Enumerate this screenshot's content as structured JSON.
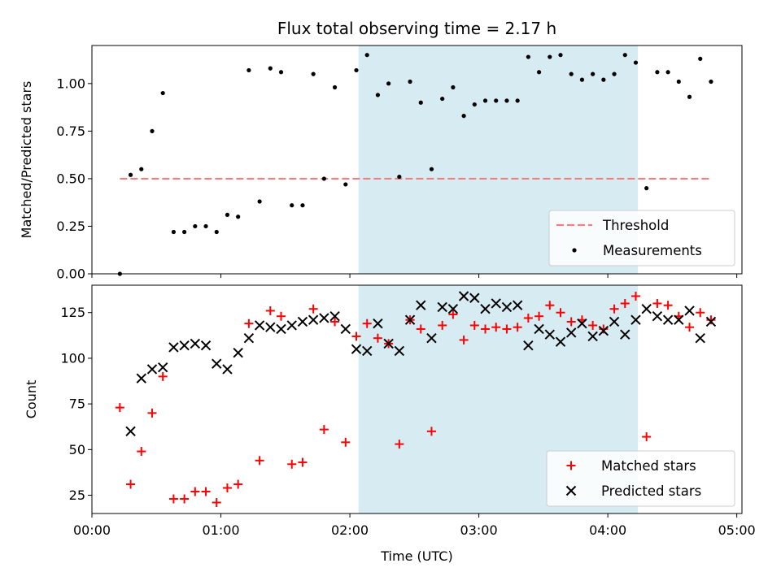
{
  "chart_data": [
    {
      "type": "scatter",
      "title": "Flux total observing time = 2.17 h",
      "ylabel": "Matched/Predicted stars",
      "xlabel": "",
      "ylim": [
        0,
        1.2
      ],
      "xlim_hours": [
        0,
        5.04
      ],
      "yticks": [
        "0.00",
        "0.25",
        "0.50",
        "0.75",
        "1.00"
      ],
      "shaded_region": {
        "start": "02:04",
        "end": "04:14",
        "color": "#add8e6"
      },
      "threshold": {
        "name": "Threshold",
        "value": 0.5,
        "from": "00:13",
        "to": "04:48",
        "color": "#f08080"
      },
      "legend": {
        "position": "lower right",
        "entries": [
          "Threshold",
          "Measurements"
        ]
      },
      "series": [
        {
          "name": "Measurements",
          "x": [
            "00:13",
            "00:18",
            "00:23",
            "00:28",
            "00:33",
            "00:38",
            "00:43",
            "00:48",
            "00:53",
            "00:58",
            "01:03",
            "01:08",
            "01:13",
            "01:18",
            "01:23",
            "01:28",
            "01:33",
            "01:38",
            "01:43",
            "01:48",
            "01:53",
            "01:58",
            "02:03",
            "02:08",
            "02:13",
            "02:18",
            "02:23",
            "02:28",
            "02:33",
            "02:38",
            "02:43",
            "02:48",
            "02:53",
            "02:58",
            "03:03",
            "03:08",
            "03:13",
            "03:18",
            "03:23",
            "03:28",
            "03:33",
            "03:38",
            "03:43",
            "03:48",
            "03:53",
            "03:58",
            "04:03",
            "04:08",
            "04:13",
            "04:18",
            "04:23",
            "04:28",
            "04:33",
            "04:38",
            "04:43",
            "04:48"
          ],
          "y": [
            0.0,
            0.52,
            0.55,
            0.75,
            0.95,
            0.22,
            0.22,
            0.25,
            0.25,
            0.22,
            0.31,
            0.3,
            1.07,
            0.38,
            1.08,
            1.06,
            0.36,
            0.36,
            1.05,
            0.5,
            0.98,
            0.47,
            1.07,
            1.15,
            0.94,
            1.0,
            0.51,
            1.01,
            0.9,
            0.55,
            0.92,
            0.98,
            0.83,
            0.89,
            0.91,
            0.91,
            0.91,
            0.91,
            1.14,
            1.06,
            1.14,
            1.15,
            1.05,
            1.02,
            1.05,
            1.02,
            1.05,
            1.15,
            1.11,
            0.45,
            1.06,
            1.06,
            1.01,
            0.93,
            1.13,
            1.01
          ]
        }
      ]
    },
    {
      "type": "scatter",
      "title": "",
      "ylabel": "Count",
      "xlabel": "Time (UTC)",
      "ylim": [
        15,
        140
      ],
      "xlim_hours": [
        0,
        5.04
      ],
      "xticks": [
        "00:00",
        "01:00",
        "02:00",
        "03:00",
        "04:00",
        "05:00"
      ],
      "yticks": [
        "25",
        "50",
        "75",
        "100",
        "125"
      ],
      "shaded_region": {
        "start": "02:04",
        "end": "04:14",
        "color": "#add8e6"
      },
      "legend": {
        "position": "lower right",
        "entries": [
          "Matched stars",
          "Predicted stars"
        ]
      },
      "series": [
        {
          "name": "Matched stars",
          "marker": "+",
          "color": "#ff0000",
          "x": [
            "00:13",
            "00:18",
            "00:23",
            "00:28",
            "00:33",
            "00:38",
            "00:43",
            "00:48",
            "00:53",
            "00:58",
            "01:03",
            "01:08",
            "01:13",
            "01:18",
            "01:23",
            "01:28",
            "01:33",
            "01:38",
            "01:43",
            "01:48",
            "01:53",
            "01:58",
            "02:03",
            "02:08",
            "02:13",
            "02:18",
            "02:23",
            "02:28",
            "02:33",
            "02:38",
            "02:43",
            "02:48",
            "02:53",
            "02:58",
            "03:03",
            "03:08",
            "03:13",
            "03:18",
            "03:23",
            "03:28",
            "03:33",
            "03:38",
            "03:43",
            "03:48",
            "03:53",
            "03:58",
            "04:03",
            "04:08",
            "04:13",
            "04:18",
            "04:23",
            "04:28",
            "04:33",
            "04:38",
            "04:43",
            "04:48"
          ],
          "y": [
            73,
            31,
            49,
            70,
            90,
            23,
            23,
            27,
            27,
            21,
            29,
            31,
            119,
            44,
            126,
            123,
            42,
            43,
            127,
            61,
            120,
            54,
            112,
            119,
            111,
            108,
            53,
            121,
            116,
            60,
            118,
            124,
            110,
            118,
            116,
            117,
            116,
            117,
            122,
            123,
            129,
            125,
            120,
            121,
            118,
            116,
            127,
            130,
            134,
            57,
            130,
            129,
            123,
            117,
            125,
            121
          ]
        },
        {
          "name": "Predicted stars",
          "marker": "x",
          "color": "#000000",
          "x": [
            "00:18",
            "00:23",
            "00:28",
            "00:33",
            "00:38",
            "00:43",
            "00:48",
            "00:53",
            "00:58",
            "01:03",
            "01:08",
            "01:13",
            "01:18",
            "01:23",
            "01:28",
            "01:33",
            "01:38",
            "01:43",
            "01:48",
            "01:53",
            "01:58",
            "02:03",
            "02:08",
            "02:13",
            "02:18",
            "02:23",
            "02:28",
            "02:33",
            "02:38",
            "02:43",
            "02:48",
            "02:53",
            "02:58",
            "03:03",
            "03:08",
            "03:13",
            "03:18",
            "03:23",
            "03:28",
            "03:33",
            "03:38",
            "03:43",
            "03:48",
            "03:53",
            "03:58",
            "04:03",
            "04:08",
            "04:13",
            "04:18",
            "04:23",
            "04:28",
            "04:33",
            "04:38",
            "04:43",
            "04:48"
          ],
          "y": [
            60,
            89,
            94,
            95,
            106,
            107,
            108,
            107,
            97,
            94,
            103,
            111,
            118,
            117,
            116,
            118,
            120,
            121,
            122,
            123,
            116,
            105,
            104,
            119,
            108,
            104,
            121,
            129,
            111,
            128,
            127,
            134,
            133,
            127,
            130,
            128,
            129,
            107,
            116,
            113,
            109,
            114,
            119,
            112,
            115,
            120,
            113,
            121,
            127,
            123,
            121,
            121,
            126,
            111,
            120
          ]
        }
      ]
    }
  ]
}
